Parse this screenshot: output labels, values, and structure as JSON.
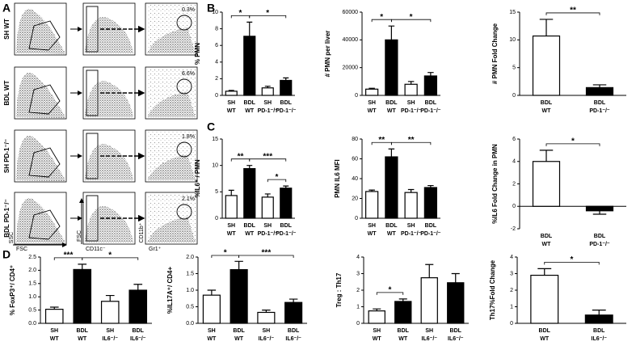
{
  "panels": [
    "A",
    "B",
    "C",
    "D"
  ],
  "flow": {
    "rows": [
      "SH WT",
      "BDL WT",
      "SH PD-1⁻/⁻",
      "BDL PD-1⁻/⁻"
    ],
    "percents": [
      "0.3%",
      "6.6%",
      "1.8%",
      "2.1%"
    ],
    "axis_labels": {
      "ssc": "SSC",
      "fsc_x": "FSC",
      "fsc_y": "FSC",
      "cd11c": "CD11c⁻",
      "cd11b": "CD11b⁺",
      "gr1": "Gr1⁺"
    }
  },
  "chart_data": [
    {
      "type": "bar",
      "ylabel": "% PMN",
      "categories": [
        [
          "SH",
          "WT"
        ],
        [
          "BDL",
          "WT"
        ],
        [
          "SH",
          "PD-1⁻/⁻"
        ],
        [
          "BDL",
          "PD-1⁻/⁻"
        ]
      ],
      "values": [
        0.5,
        7.1,
        0.9,
        1.8
      ],
      "errors": [
        0.1,
        1.7,
        0.2,
        0.3
      ],
      "colors": [
        "#ffffff",
        "#000000",
        "#ffffff",
        "#000000"
      ],
      "ylim": [
        0,
        10
      ],
      "yticks": [
        0,
        2,
        4,
        6,
        8,
        10
      ],
      "annotations": [
        {
          "text": "*",
          "from": 0,
          "to": 1
        },
        {
          "text": "*",
          "from": 1,
          "to": 3
        }
      ]
    },
    {
      "type": "bar",
      "ylabel": "# PMN per liver",
      "categories": [
        [
          "SH",
          "WT"
        ],
        [
          "BDL",
          "WT"
        ],
        [
          "SH",
          "PD-1⁻/⁻"
        ],
        [
          "BDL",
          "PD-1⁻/⁻"
        ]
      ],
      "values": [
        4500,
        40000,
        8000,
        14000
      ],
      "errors": [
        600,
        10000,
        2000,
        2500
      ],
      "colors": [
        "#ffffff",
        "#000000",
        "#ffffff",
        "#000000"
      ],
      "ylim": [
        0,
        60000
      ],
      "yticks": [
        0,
        20000,
        40000,
        60000
      ],
      "annotations": [
        {
          "text": "*",
          "from": 0,
          "to": 1
        },
        {
          "text": "*",
          "from": 1,
          "to": 3
        }
      ]
    },
    {
      "type": "bar",
      "ylabel": "# PMN Fold Change",
      "categories": [
        [
          "BDL",
          "WT"
        ],
        [
          "BDL",
          "PD-1⁻/⁻"
        ]
      ],
      "values": [
        10.7,
        1.4
      ],
      "errors": [
        3.0,
        0.5
      ],
      "colors": [
        "#ffffff",
        "#000000"
      ],
      "ylim": [
        0,
        15
      ],
      "yticks": [
        0,
        5,
        10,
        15
      ],
      "annotations": [
        {
          "text": "**",
          "from": 0,
          "to": 1
        }
      ]
    },
    {
      "type": "bar",
      "ylabel": "%IL6⁺ / PMN",
      "categories": [
        [
          "SH",
          "WT"
        ],
        [
          "BDL",
          "WT"
        ],
        [
          "SH",
          "PD-1⁻/⁻"
        ],
        [
          "BDL",
          "PD-1⁻/⁻"
        ]
      ],
      "values": [
        4.3,
        9.4,
        4.0,
        5.7
      ],
      "errors": [
        1.0,
        0.6,
        0.6,
        0.4
      ],
      "colors": [
        "#ffffff",
        "#000000",
        "#ffffff",
        "#000000"
      ],
      "ylim": [
        0,
        15
      ],
      "yticks": [
        0,
        5,
        10,
        15
      ],
      "annotations": [
        {
          "text": "**",
          "from": 0,
          "to": 1
        },
        {
          "text": "***",
          "from": 1,
          "to": 3
        },
        {
          "text": "*",
          "from": 2,
          "to": 3
        }
      ]
    },
    {
      "type": "bar",
      "ylabel": "PMN IL6 MFI",
      "categories": [
        [
          "SH",
          "WT"
        ],
        [
          "BDL",
          "WT"
        ],
        [
          "SH",
          "PD-1⁻/⁻"
        ],
        [
          "BDL",
          "PD-1⁻/⁻"
        ]
      ],
      "values": [
        27,
        62,
        26,
        31
      ],
      "errors": [
        1.5,
        8,
        3,
        2
      ],
      "colors": [
        "#ffffff",
        "#000000",
        "#ffffff",
        "#000000"
      ],
      "ylim": [
        0,
        80
      ],
      "yticks": [
        0,
        20,
        40,
        60,
        80
      ],
      "annotations": [
        {
          "text": "**",
          "from": 0,
          "to": 1
        },
        {
          "text": "**",
          "from": 1,
          "to": 3
        }
      ]
    },
    {
      "type": "bar",
      "ylabel": "%IL6 Fold Change in PMN",
      "categories": [
        [
          "BDL",
          "WT"
        ],
        [
          "BDL",
          "PD-1⁻/⁻"
        ]
      ],
      "values": [
        4.0,
        -0.4
      ],
      "errors": [
        1.0,
        0.3
      ],
      "colors": [
        "#ffffff",
        "#000000"
      ],
      "ylim": [
        -2,
        6
      ],
      "yticks": [
        -2,
        0,
        2,
        4,
        6
      ],
      "annotations": [
        {
          "text": "*",
          "from": 0,
          "to": 1
        }
      ]
    },
    {
      "type": "bar",
      "ylabel": "% FoxP3⁺/ CD4⁺",
      "categories": [
        [
          "SH",
          "WT"
        ],
        [
          "BDL",
          "WT"
        ],
        [
          "SH",
          "IL6⁻/⁻"
        ],
        [
          "BDL",
          "IL6⁻/⁻"
        ]
      ],
      "values": [
        0.53,
        2.03,
        0.83,
        1.25
      ],
      "errors": [
        0.08,
        0.2,
        0.22,
        0.22
      ],
      "colors": [
        "#ffffff",
        "#000000",
        "#ffffff",
        "#000000"
      ],
      "ylim": [
        0,
        2.5
      ],
      "yticks": [
        {
          "value": 0,
          "label": "0.0"
        },
        {
          "value": 0.5,
          "label": "0.5"
        },
        {
          "value": 1,
          "label": "1.0"
        },
        {
          "value": 1.5,
          "label": "1.5"
        },
        {
          "value": 2,
          "label": "2.0"
        },
        {
          "value": 2.5,
          "label": "2.5"
        }
      ],
      "annotations": [
        {
          "text": "***",
          "from": 0,
          "to": 1
        },
        {
          "text": "*",
          "from": 1,
          "to": 3
        }
      ]
    },
    {
      "type": "bar",
      "ylabel": "%IL17A⁺/ CD4+",
      "categories": [
        [
          "SH",
          "WT"
        ],
        [
          "BDL",
          "WT"
        ],
        [
          "SH",
          "IL6⁻/⁻"
        ],
        [
          "BDL",
          "IL6⁻/⁻"
        ]
      ],
      "values": [
        0.85,
        1.62,
        0.33,
        0.63
      ],
      "errors": [
        0.15,
        0.25,
        0.07,
        0.1
      ],
      "colors": [
        "#ffffff",
        "#000000",
        "#ffffff",
        "#000000"
      ],
      "ylim": [
        0,
        2
      ],
      "yticks": [
        {
          "value": 0,
          "label": "0.0"
        },
        {
          "value": 0.5,
          "label": "0.5"
        },
        {
          "value": 1,
          "label": "1.0"
        },
        {
          "value": 1.5,
          "label": "1.5"
        },
        {
          "value": 2,
          "label": "2.0"
        }
      ],
      "annotations": [
        {
          "text": "*",
          "from": 0,
          "to": 1
        },
        {
          "text": "***",
          "from": 1,
          "to": 3
        }
      ]
    },
    {
      "type": "bar",
      "ylabel": "Treg : Th17",
      "categories": [
        [
          "SH",
          "WT"
        ],
        [
          "BDL",
          "WT"
        ],
        [
          "SH",
          "IL6⁻/⁻"
        ],
        [
          "BDL",
          "IL6⁻/⁻"
        ]
      ],
      "values": [
        0.75,
        1.32,
        2.75,
        2.45
      ],
      "errors": [
        0.12,
        0.15,
        0.8,
        0.55
      ],
      "colors": [
        "#ffffff",
        "#000000",
        "#ffffff",
        "#000000"
      ],
      "ylim": [
        0,
        4
      ],
      "yticks": [
        0,
        1,
        2,
        3,
        4
      ],
      "annotations": [
        {
          "text": "*",
          "from": 0,
          "to": 1
        }
      ]
    },
    {
      "type": "bar",
      "ylabel": "Th17%Fold Change",
      "categories": [
        [
          "BDL",
          "WT"
        ],
        [
          "BDL",
          "IL6⁻/⁻"
        ]
      ],
      "values": [
        2.9,
        0.5
      ],
      "errors": [
        0.4,
        0.3
      ],
      "colors": [
        "#ffffff",
        "#000000"
      ],
      "ylim": [
        0,
        4
      ],
      "yticks": [
        0,
        1,
        2,
        3,
        4
      ],
      "annotations": [
        {
          "text": "*",
          "from": 0,
          "to": 1
        }
      ]
    }
  ]
}
